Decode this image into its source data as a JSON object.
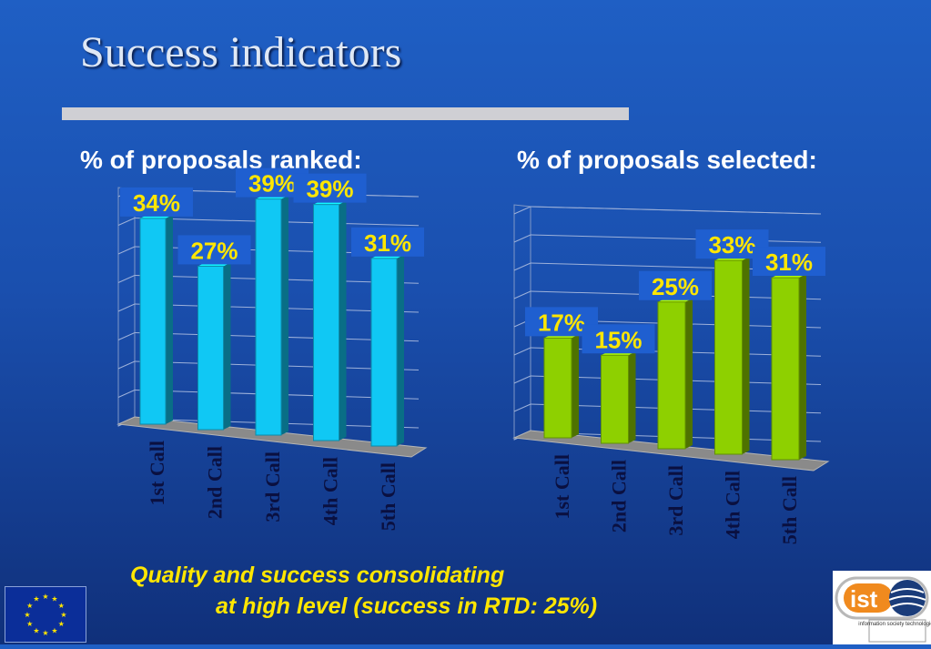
{
  "title": "Success indicators",
  "caption": {
    "line1": "Quality and success consolidating",
    "line2": "at high level (success in RTD: 25%)"
  },
  "colors": {
    "background": "#1a4fae",
    "title_text": "#dfe8f5",
    "label_yellow": "#ffe600",
    "bar_cyan": "#10c8f4",
    "bar_green": "#8ed000",
    "eu_blue": "#0b2e99",
    "star_yellow": "#ffe600"
  },
  "logos": {
    "eu_flag_icon": "eu-flag",
    "ist_logo_text": "ist",
    "ist_logo_subtext": "information society technologies"
  },
  "chart_data": [
    {
      "type": "bar",
      "title": "% of proposals ranked:",
      "categories": [
        "1st Call",
        "2nd Call",
        "3rd Call",
        "4th Call",
        "5th Call"
      ],
      "values": [
        34,
        27,
        39,
        39,
        31
      ],
      "value_labels": [
        "34%",
        "27%",
        "39%",
        "39%",
        "31%"
      ],
      "ylim": [
        0,
        40
      ],
      "grid": true,
      "legend": "none",
      "bar_color": "#10c8f4"
    },
    {
      "type": "bar",
      "title": "% of proposals selected:",
      "categories": [
        "1st Call",
        "2nd Call",
        "3rd Call",
        "4th Call",
        "5th Call"
      ],
      "values": [
        17,
        15,
        25,
        33,
        31
      ],
      "value_labels": [
        "17%",
        "15%",
        "25%",
        "33%",
        "31%"
      ],
      "ylim": [
        0,
        40
      ],
      "grid": true,
      "legend": "none",
      "bar_color": "#8ed000"
    }
  ]
}
